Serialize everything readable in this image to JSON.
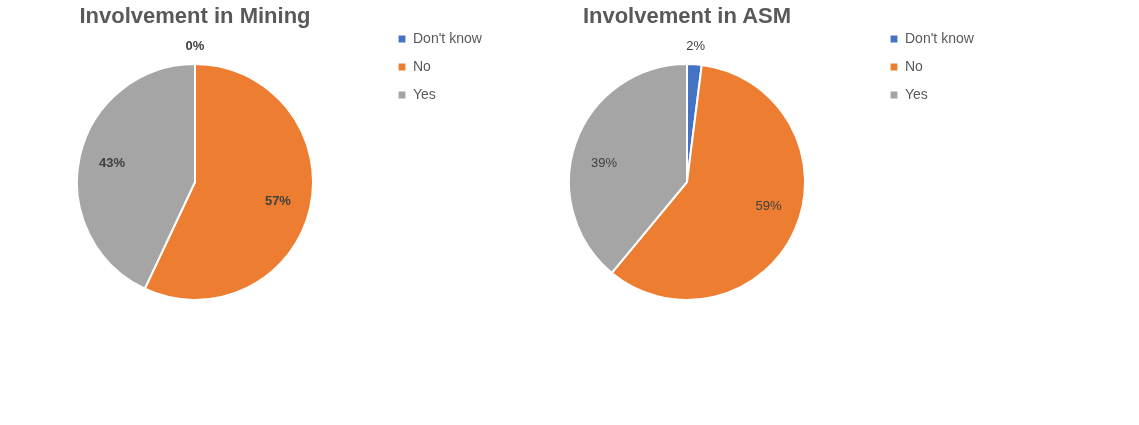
{
  "chart_data": [
    {
      "type": "pie",
      "title": "Involvement in Mining",
      "categories": [
        "Don't know",
        "No",
        "Yes"
      ],
      "values": [
        0,
        57,
        43
      ],
      "colors": [
        "#4472c4",
        "#ed7d31",
        "#a5a5a5"
      ],
      "value_labels": [
        "0%",
        "57%",
        "43%"
      ],
      "legend": "right"
    },
    {
      "type": "pie",
      "title": "Involvement in ASM",
      "categories": [
        "Don't know",
        "No",
        "Yes"
      ],
      "values": [
        2,
        59,
        39
      ],
      "colors": [
        "#4472c4",
        "#ed7d31",
        "#a5a5a5"
      ],
      "value_labels": [
        "2%",
        "59%",
        "39%"
      ],
      "legend": "right"
    }
  ]
}
